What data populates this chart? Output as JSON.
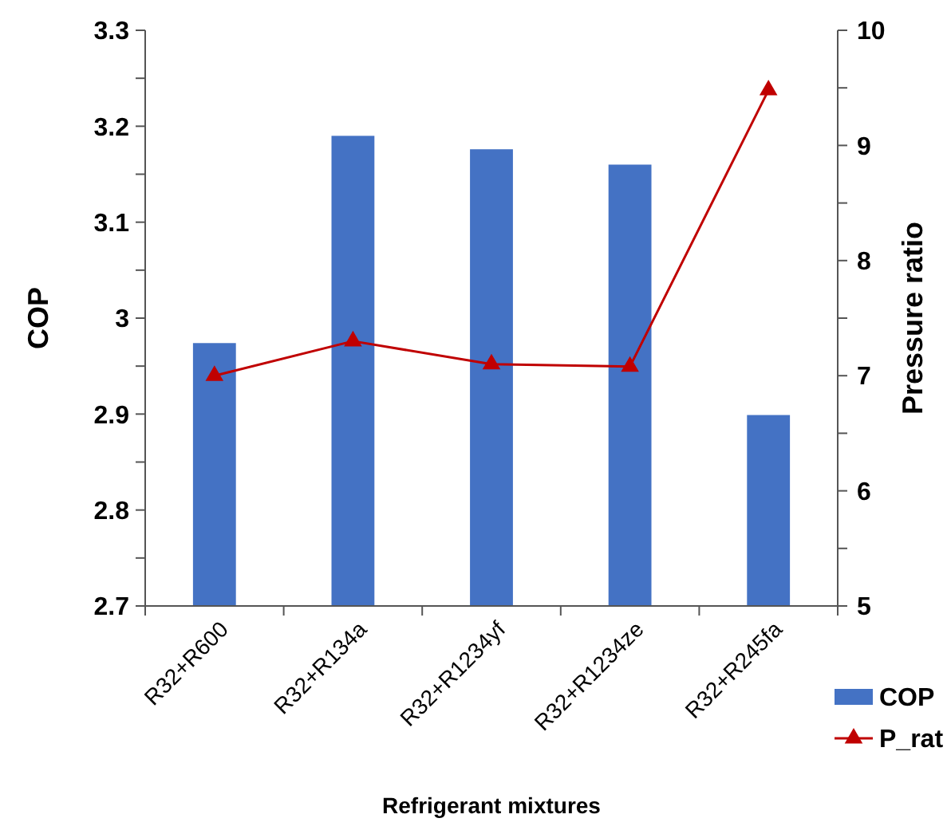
{
  "chart_data": {
    "type": "bar",
    "xlabel": "Refrigerant mixtures",
    "ylabel": "COP",
    "y2label": "Pressure ratio",
    "categories": [
      "R32+R600",
      "R32+R134a",
      "R32+R1234yf",
      "R32+R1234ze",
      "R32+R245fa"
    ],
    "series": [
      {
        "name": "COP",
        "color": "#4472c4",
        "values": [
          2.974,
          3.19,
          3.176,
          3.16,
          2.899
        ]
      },
      {
        "name": "P_rat",
        "type": "line",
        "axis": "y2",
        "color": "#c00000",
        "marker": "triangle",
        "values": [
          7.0,
          7.3,
          7.1,
          7.08,
          9.48
        ]
      }
    ],
    "ylim": [
      2.7,
      3.3
    ],
    "yticks": [
      2.7,
      {
        "value": 2.75,
        "label": null
      },
      2.8,
      {
        "value": 2.85,
        "label": null
      },
      2.9,
      {
        "value": 2.95,
        "label": null
      },
      {
        "value": 3,
        "label": "3"
      },
      {
        "value": 3.05,
        "label": null
      },
      3.1,
      {
        "value": 3.15,
        "label": null
      },
      3.2,
      {
        "value": 3.25,
        "label": null
      },
      3.3
    ],
    "y2lim": [
      5,
      10
    ],
    "y2ticks": [
      5,
      {
        "value": 5.5,
        "label": null
      },
      6,
      {
        "value": 6.5,
        "label": null
      },
      7,
      {
        "value": 7.5,
        "label": null
      },
      8,
      {
        "value": 8.5,
        "label": null
      },
      9,
      {
        "value": 9.5,
        "label": null
      },
      10
    ],
    "grid": false,
    "legend": "bottom right"
  }
}
